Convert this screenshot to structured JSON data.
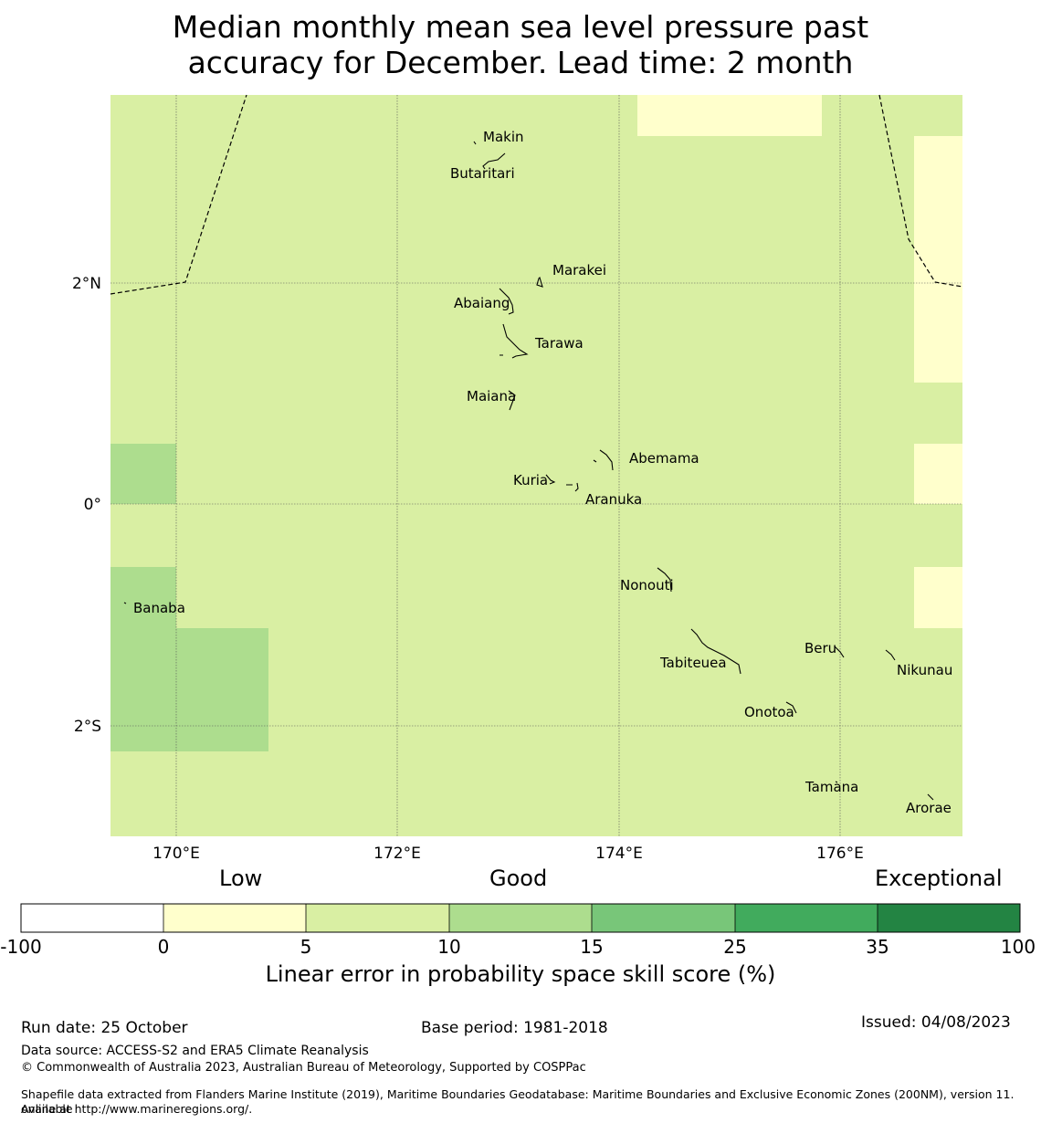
{
  "title_line1": "Median monthly mean sea level pressure past",
  "title_line2": "accuracy for December. Lead time: 2 month",
  "colors": {
    "base": "#d9efa3",
    "low": "#ffffcc",
    "good_high": "#addd8e",
    "ocean_line": "#000000"
  },
  "map": {
    "lon_ticks": [
      "170°E",
      "172°E",
      "174°E",
      "176°E"
    ],
    "lat_ticks": [
      "2°N",
      "0°",
      "2°S"
    ],
    "islands": [
      "Makin",
      "Butaritari",
      "Marakei",
      "Abaiang",
      "Tarawa",
      "Maiana",
      "Abemama",
      "Kuria",
      "Aranuka",
      "Nonouti",
      "Banaba",
      "Beru",
      "Tabiteuea",
      "Nikunau",
      "Onotoa",
      "Tamana",
      "Arorae"
    ],
    "categories": [
      "Low",
      "Good",
      "Exceptional"
    ]
  },
  "colorbar": {
    "labels": [
      "-100",
      "0",
      "5",
      "10",
      "15",
      "25",
      "35",
      "100"
    ],
    "colors": [
      "#ffffff",
      "#ffffcc",
      "#d9efa3",
      "#addd8e",
      "#78c679",
      "#41ab5d",
      "#238443"
    ],
    "title": "Linear error in probability space skill score (%)"
  },
  "footer": {
    "run_date": "Run date: 25 October",
    "base_period": "Base period: 1981-2018",
    "issued": "Issued: 04/08/2023",
    "data_source": "Data source: ACCESS-S2 and ERA5 Climate Reanalysis",
    "copyright": "© Commonwealth of Australia 2023, Australian Bureau of Meteorology, Supported by COSPPac",
    "shapefile_line1": "Shapefile data extracted from Flanders Marine Institute (2019), Maritime Boundaries Geodatabase: Maritime Boundaries and Exclusive Economic Zones (200NM), version 11. Available",
    "shapefile_line2": "online at http://www.marineregions.org/."
  }
}
